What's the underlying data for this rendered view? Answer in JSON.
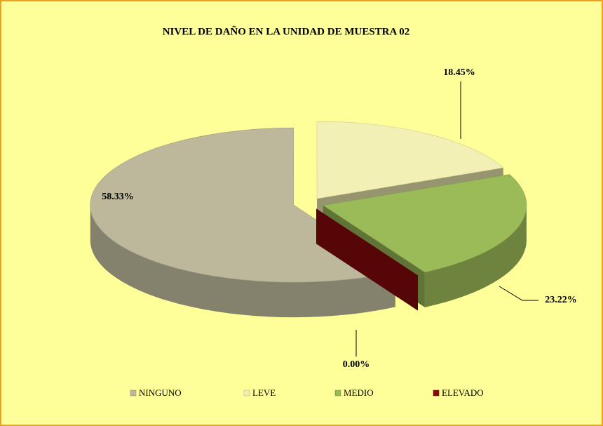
{
  "chart_data": {
    "type": "pie3d",
    "title": "NIVEL DE DAÑO EN LA UNIDAD DE MUESTRA 02",
    "categories": [
      "NINGUNO",
      "LEVE",
      "MEDIO",
      "ELEVADO"
    ],
    "values": [
      58.33,
      18.45,
      23.22,
      0.0
    ],
    "value_labels": [
      "58.33%",
      "18.45%",
      "23.22%",
      "0.00%"
    ],
    "colors": [
      "#bdb89c",
      "#f2f0b4",
      "#9bbb59",
      "#8b0a0a"
    ],
    "legend": "bottom"
  }
}
